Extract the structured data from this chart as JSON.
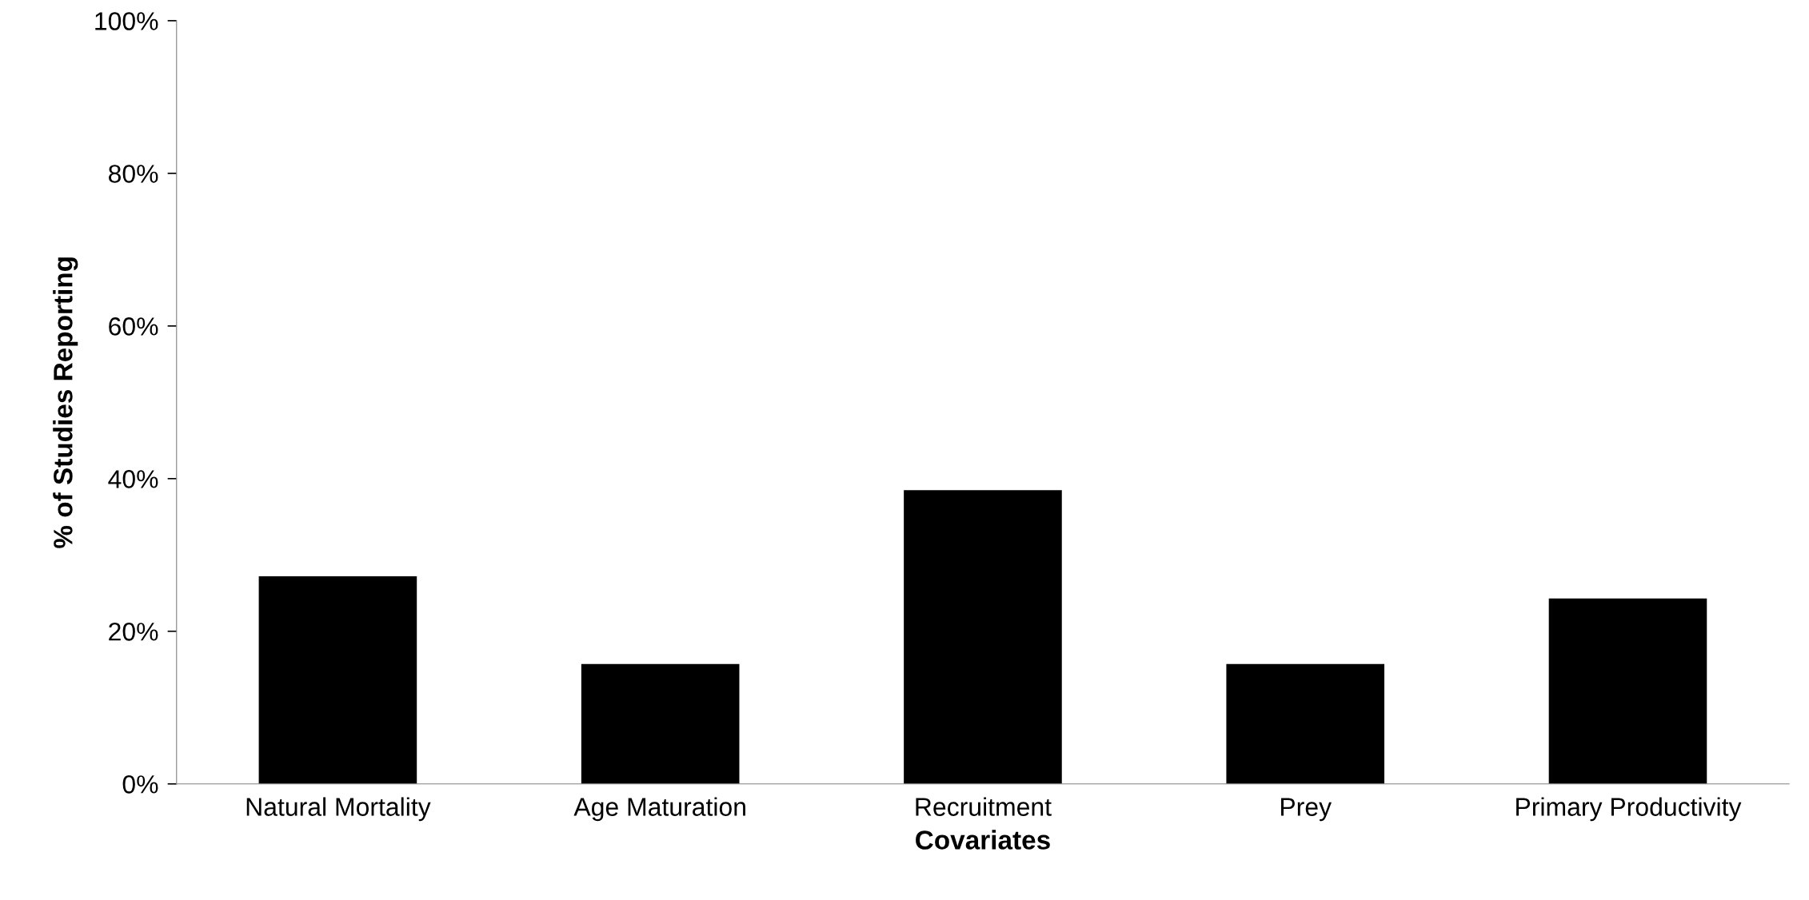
{
  "chart_data": {
    "type": "bar",
    "xlabel": "Covariates",
    "ylabel": "% of Studies Reporting",
    "categories": [
      "Natural Mortality",
      "Age Maturation",
      "Recruitment",
      "Prey",
      "Primary Productivity"
    ],
    "values": [
      27.2,
      15.7,
      38.5,
      15.7,
      24.3
    ],
    "color": "#000000",
    "ylim": [
      0,
      100
    ],
    "yticks": [
      {
        "value": 0,
        "label": "0%"
      },
      {
        "value": 20,
        "label": "20%"
      },
      {
        "value": 40,
        "label": "40%"
      },
      {
        "value": 60,
        "label": "60%"
      },
      {
        "value": 80,
        "label": "80%"
      },
      {
        "value": 100,
        "label": "100%"
      }
    ],
    "grid": false,
    "legend": false
  }
}
